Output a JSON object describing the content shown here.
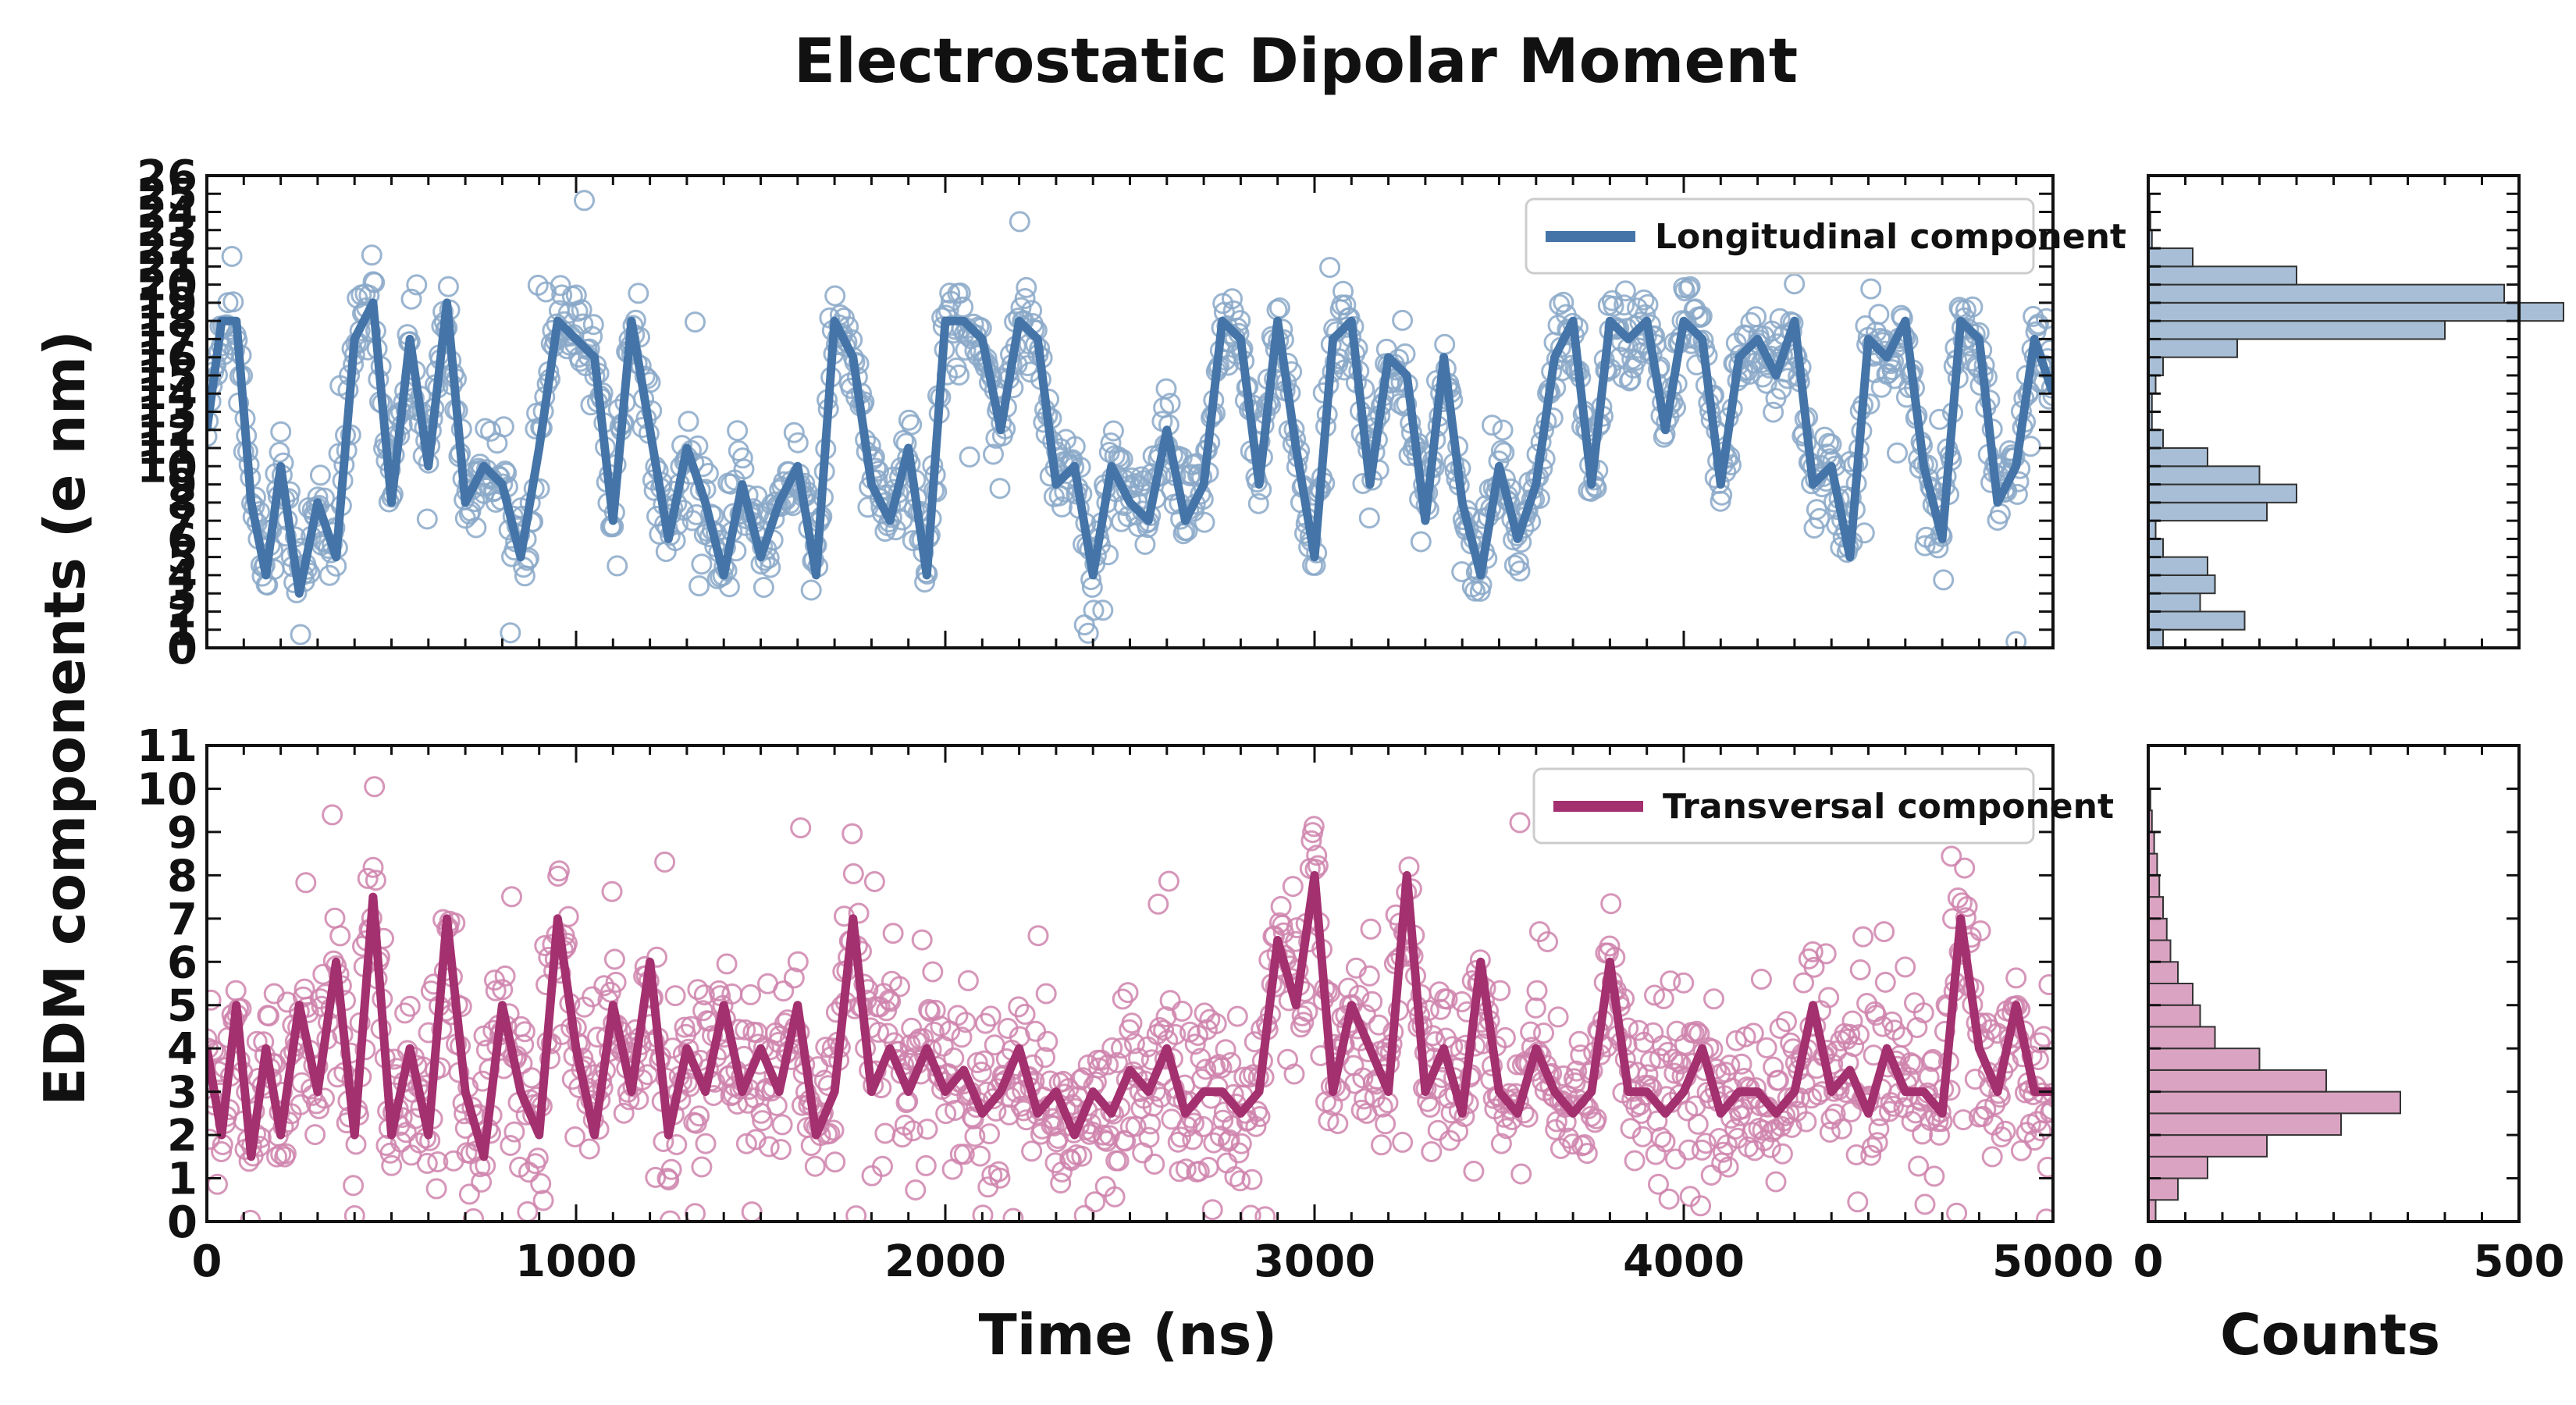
{
  "figure": {
    "title": "Electrostatic Dipolar Moment",
    "shared_ylabel": "EDM components (e nm)",
    "shared_xlabel": "Time (ns)",
    "hist_xlabel": "Counts"
  },
  "chart_data": [
    {
      "id": "longitudinal",
      "type": "line+scatter",
      "title": "",
      "xlabel": "Time (ns)",
      "ylabel": "EDM components (e nm)",
      "xlim": [
        0,
        5000
      ],
      "ylim": [
        0,
        26
      ],
      "xticks": [
        0,
        1000,
        2000,
        3000,
        4000,
        5000
      ],
      "yticks": [
        0,
        1,
        2,
        3,
        4,
        5,
        6,
        7,
        8,
        9,
        10,
        11,
        12,
        13,
        14,
        15,
        16,
        17,
        18,
        19,
        20,
        21,
        22,
        23,
        24,
        25,
        26
      ],
      "ytick_labels": [
        "0",
        "1",
        "2",
        "3",
        "4",
        "5",
        "6",
        "7",
        "8",
        "9",
        "10",
        "11",
        "12",
        "13",
        "14",
        "15",
        "16",
        "17",
        "18",
        "19",
        "20",
        "21",
        "22",
        "23",
        "24",
        "25",
        "26"
      ],
      "series_name": "Longitudinal component",
      "color": "#4575a8",
      "marker_color": "#8aa8c8",
      "legend_position": "top-right",
      "trend": {
        "x": [
          0,
          40,
          80,
          120,
          160,
          200,
          250,
          300,
          350,
          400,
          450,
          500,
          550,
          600,
          650,
          700,
          750,
          800,
          850,
          900,
          950,
          1000,
          1050,
          1100,
          1150,
          1200,
          1250,
          1300,
          1350,
          1400,
          1450,
          1500,
          1550,
          1600,
          1650,
          1700,
          1750,
          1800,
          1850,
          1900,
          1950,
          2000,
          2050,
          2100,
          2150,
          2200,
          2250,
          2300,
          2350,
          2400,
          2450,
          2500,
          2550,
          2600,
          2650,
          2700,
          2750,
          2800,
          2850,
          2900,
          2950,
          3000,
          3050,
          3100,
          3150,
          3200,
          3250,
          3300,
          3350,
          3400,
          3450,
          3500,
          3550,
          3600,
          3650,
          3700,
          3750,
          3800,
          3850,
          3900,
          3950,
          4000,
          4050,
          4100,
          4150,
          4200,
          4250,
          4300,
          4350,
          4400,
          4450,
          4500,
          4550,
          4600,
          4650,
          4700,
          4750,
          4800,
          4850,
          4900,
          4950,
          5000
        ],
        "y": [
          12,
          18,
          18,
          8,
          4,
          10,
          3,
          8,
          5,
          17,
          19,
          8,
          17,
          10,
          19,
          8,
          10,
          9,
          5,
          11,
          18,
          17,
          16,
          7,
          18,
          12,
          6,
          11,
          8,
          4,
          9,
          5,
          8,
          10,
          4,
          18,
          16,
          9,
          7,
          11,
          4,
          18,
          18,
          17,
          12,
          18,
          17,
          9,
          10,
          4,
          10,
          8,
          7,
          12,
          7,
          9,
          18,
          17,
          9,
          18,
          11,
          5,
          17,
          18,
          9,
          16,
          15,
          7,
          16,
          8,
          4,
          10,
          6,
          9,
          16,
          18,
          9,
          18,
          17,
          18,
          12,
          18,
          17,
          9,
          16,
          17,
          15,
          18,
          9,
          10,
          5,
          17,
          16,
          18,
          10,
          6,
          18,
          17,
          8,
          10,
          17,
          14
        ]
      },
      "histogram": {
        "xlim": [
          0,
          500
        ],
        "xticks": [
          0,
          500
        ],
        "bin_edges": [
          0,
          1,
          2,
          3,
          4,
          5,
          6,
          7,
          8,
          9,
          10,
          11,
          12,
          13,
          14,
          15,
          16,
          17,
          18,
          19,
          20,
          21,
          22,
          23,
          24,
          25,
          26
        ],
        "counts": [
          20,
          130,
          70,
          90,
          80,
          20,
          10,
          160,
          200,
          150,
          80,
          20,
          5,
          5,
          10,
          20,
          120,
          400,
          560,
          480,
          200,
          60,
          5,
          3,
          2,
          0
        ]
      }
    },
    {
      "id": "transversal",
      "type": "line+scatter",
      "title": "",
      "xlabel": "Time (ns)",
      "ylabel": "EDM components (e nm)",
      "xlim": [
        0,
        5000
      ],
      "ylim": [
        0,
        11
      ],
      "xticks": [
        0,
        1000,
        2000,
        3000,
        4000,
        5000
      ],
      "yticks": [
        0,
        1,
        2,
        3,
        4,
        5,
        6,
        7,
        8,
        9,
        10,
        11
      ],
      "ytick_labels": [
        "0",
        "1",
        "2",
        "3",
        "4",
        "5",
        "6",
        "7",
        "8",
        "9",
        "10",
        "11"
      ],
      "series_name": "Transversal component",
      "color": "#a3306f",
      "marker_color": "#cf84ad",
      "legend_position": "top-right",
      "trend": {
        "x": [
          0,
          40,
          80,
          120,
          160,
          200,
          250,
          300,
          350,
          400,
          450,
          500,
          550,
          600,
          650,
          700,
          750,
          800,
          850,
          900,
          950,
          1000,
          1050,
          1100,
          1150,
          1200,
          1250,
          1300,
          1350,
          1400,
          1450,
          1500,
          1550,
          1600,
          1650,
          1700,
          1750,
          1800,
          1850,
          1900,
          1950,
          2000,
          2050,
          2100,
          2150,
          2200,
          2250,
          2300,
          2350,
          2400,
          2450,
          2500,
          2550,
          2600,
          2650,
          2700,
          2750,
          2800,
          2850,
          2900,
          2950,
          3000,
          3050,
          3100,
          3150,
          3200,
          3250,
          3300,
          3350,
          3400,
          3450,
          3500,
          3550,
          3600,
          3650,
          3700,
          3750,
          3800,
          3850,
          3900,
          3950,
          4000,
          4050,
          4100,
          4150,
          4200,
          4250,
          4300,
          4350,
          4400,
          4450,
          4500,
          4550,
          4600,
          4650,
          4700,
          4750,
          4800,
          4850,
          4900,
          4950,
          5000
        ],
        "y": [
          4,
          2,
          5,
          1.5,
          4,
          2,
          5,
          3,
          6,
          2,
          7.5,
          2,
          4,
          2,
          7,
          3,
          1.5,
          5,
          3,
          2,
          7,
          4,
          2,
          5,
          3,
          6,
          2,
          4,
          3,
          5,
          3,
          4,
          3,
          5,
          2,
          3,
          7,
          3,
          4,
          3,
          4,
          3,
          3.5,
          2.5,
          3,
          4,
          2.5,
          3,
          2,
          3,
          2.5,
          3.5,
          3,
          4,
          2.5,
          3,
          3,
          2.5,
          3,
          6.5,
          5,
          8,
          3,
          5,
          4,
          3,
          8,
          3,
          4,
          2.5,
          6,
          3,
          2.5,
          4,
          3,
          2.5,
          3,
          6,
          3,
          3,
          2.5,
          3,
          4,
          2.5,
          3,
          3,
          2.5,
          3,
          5,
          3,
          3.5,
          2.5,
          4,
          3,
          3,
          2.5,
          7,
          4,
          3,
          5,
          3,
          3
        ]
      },
      "histogram": {
        "xlim": [
          0,
          500
        ],
        "xticks": [
          0,
          500
        ],
        "bin_edges": [
          0,
          0.5,
          1,
          1.5,
          2,
          2.5,
          3,
          3.5,
          4,
          4.5,
          5,
          5.5,
          6,
          6.5,
          7,
          7.5,
          8,
          8.5,
          9,
          9.5,
          10,
          10.5,
          11
        ],
        "counts": [
          10,
          40,
          80,
          160,
          260,
          340,
          240,
          150,
          90,
          70,
          60,
          40,
          30,
          25,
          20,
          15,
          12,
          8,
          5,
          3,
          1,
          0
        ]
      }
    }
  ]
}
